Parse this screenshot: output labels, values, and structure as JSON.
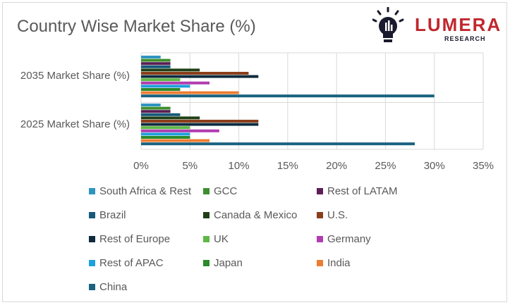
{
  "chart_data": {
    "type": "bar",
    "orientation": "horizontal",
    "title": "Country Wise Market Share (%)",
    "categories": [
      "2035 Market Share (%)",
      "2025 Market Share (%)"
    ],
    "xlim": [
      0,
      35
    ],
    "xticks": [
      "0%",
      "5%",
      "10%",
      "15%",
      "20%",
      "25%",
      "30%",
      "35%"
    ],
    "grid": true,
    "legend_position": "bottom",
    "series": [
      {
        "name": "South Africa & Rest",
        "color": "#2e95c0",
        "values": [
          2,
          2
        ]
      },
      {
        "name": "GCC",
        "color": "#3e8e2e",
        "values": [
          3,
          3
        ]
      },
      {
        "name": "Rest of LATAM",
        "color": "#5b1f55",
        "values": [
          3,
          3
        ]
      },
      {
        "name": "Brazil",
        "color": "#17597a",
        "values": [
          3,
          4
        ]
      },
      {
        "name": "Canada & Mexico",
        "color": "#1f3f15",
        "values": [
          6,
          6
        ]
      },
      {
        "name": "U.S.",
        "color": "#8b3e1a",
        "values": [
          11,
          12
        ]
      },
      {
        "name": "Rest of Europe",
        "color": "#0e2b3d",
        "values": [
          12,
          12
        ]
      },
      {
        "name": "UK",
        "color": "#5fb845",
        "values": [
          4,
          5
        ]
      },
      {
        "name": "Germany",
        "color": "#b03db0",
        "values": [
          7,
          8
        ]
      },
      {
        "name": "Rest of APAC",
        "color": "#1ea0dc",
        "values": [
          5,
          5
        ]
      },
      {
        "name": "Japan",
        "color": "#2b8a2b",
        "values": [
          4,
          5
        ]
      },
      {
        "name": "India",
        "color": "#ed7d31",
        "values": [
          10,
          7
        ]
      },
      {
        "name": "China",
        "color": "#1a6280",
        "values": [
          30,
          28
        ]
      }
    ]
  },
  "logo": {
    "word": "LUMERA",
    "sub": "RESEARCH",
    "color": "#c0272d",
    "icon": "lightbulb-gear-icon"
  }
}
